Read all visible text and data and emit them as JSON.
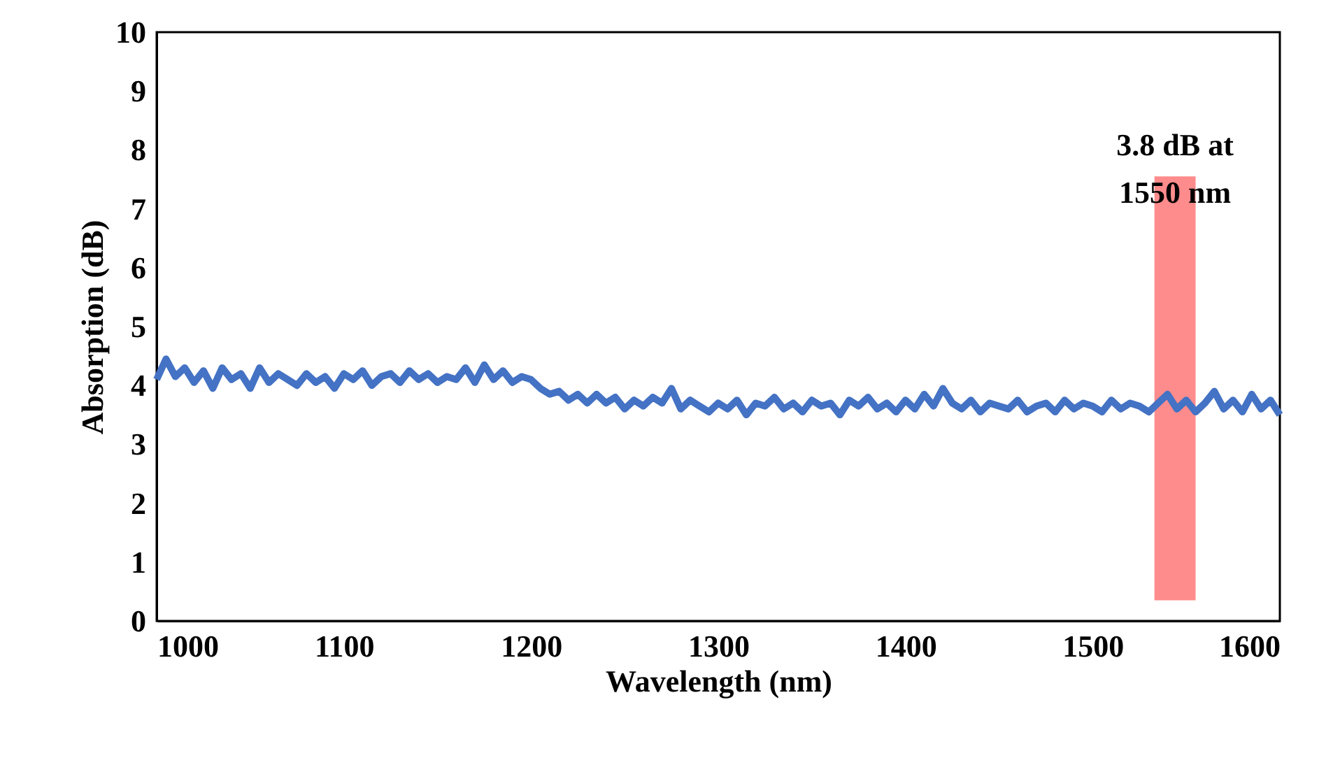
{
  "chart_data": {
    "type": "line",
    "xlabel": "Wavelength (nm)",
    "ylabel": "Absorption  (dB)",
    "x": [
      1000,
      1005,
      1010,
      1015,
      1020,
      1025,
      1030,
      1035,
      1040,
      1045,
      1050,
      1055,
      1060,
      1065,
      1070,
      1075,
      1080,
      1085,
      1090,
      1095,
      1100,
      1105,
      1110,
      1115,
      1120,
      1125,
      1130,
      1135,
      1140,
      1145,
      1150,
      1155,
      1160,
      1165,
      1170,
      1175,
      1180,
      1185,
      1190,
      1195,
      1200,
      1205,
      1210,
      1215,
      1220,
      1225,
      1230,
      1235,
      1240,
      1245,
      1250,
      1255,
      1260,
      1265,
      1270,
      1275,
      1280,
      1285,
      1290,
      1295,
      1300,
      1305,
      1310,
      1315,
      1320,
      1325,
      1330,
      1335,
      1340,
      1345,
      1350,
      1355,
      1360,
      1365,
      1370,
      1375,
      1380,
      1385,
      1390,
      1395,
      1400,
      1405,
      1410,
      1415,
      1420,
      1425,
      1430,
      1435,
      1440,
      1445,
      1450,
      1455,
      1460,
      1465,
      1470,
      1475,
      1480,
      1485,
      1490,
      1495,
      1500,
      1505,
      1510,
      1515,
      1520,
      1525,
      1530,
      1535,
      1540,
      1545,
      1550,
      1555,
      1560,
      1565,
      1570,
      1575,
      1580,
      1585,
      1590,
      1595,
      1600
    ],
    "series": [
      {
        "color": "#4472c4",
        "values": [
          4.1,
          4.45,
          4.15,
          4.3,
          4.05,
          4.25,
          3.95,
          4.3,
          4.1,
          4.2,
          3.95,
          4.3,
          4.05,
          4.2,
          4.1,
          4.0,
          4.2,
          4.05,
          4.15,
          3.95,
          4.2,
          4.1,
          4.25,
          4.0,
          4.15,
          4.2,
          4.05,
          4.25,
          4.1,
          4.2,
          4.05,
          4.15,
          4.1,
          4.3,
          4.05,
          4.35,
          4.1,
          4.25,
          4.05,
          4.15,
          4.1,
          3.95,
          3.85,
          3.9,
          3.75,
          3.85,
          3.7,
          3.85,
          3.7,
          3.8,
          3.6,
          3.75,
          3.65,
          3.8,
          3.7,
          3.95,
          3.6,
          3.75,
          3.65,
          3.55,
          3.7,
          3.6,
          3.75,
          3.5,
          3.7,
          3.65,
          3.8,
          3.6,
          3.7,
          3.55,
          3.75,
          3.65,
          3.7,
          3.5,
          3.75,
          3.65,
          3.8,
          3.6,
          3.7,
          3.55,
          3.75,
          3.6,
          3.85,
          3.65,
          3.95,
          3.7,
          3.6,
          3.75,
          3.55,
          3.7,
          3.65,
          3.6,
          3.75,
          3.55,
          3.65,
          3.7,
          3.55,
          3.75,
          3.6,
          3.7,
          3.65,
          3.55,
          3.75,
          3.6,
          3.7,
          3.65,
          3.55,
          3.7,
          3.85,
          3.6,
          3.75,
          3.55,
          3.7,
          3.9,
          3.6,
          3.75,
          3.55,
          3.85,
          3.6,
          3.75,
          3.5
        ]
      }
    ],
    "xlim": [
      1000,
      1600
    ],
    "xticks": [
      1000,
      1100,
      1200,
      1300,
      1400,
      1500,
      1600
    ],
    "ylim": [
      0,
      10
    ],
    "yticks": [
      0,
      1,
      2,
      3,
      4,
      5,
      6,
      7,
      8,
      9,
      10
    ],
    "bands": [
      {
        "axis": "x",
        "from": 1533,
        "to": 1555,
        "color": "#ff7f7f"
      }
    ],
    "annotations": [
      "3.8 dB at 1550 nm"
    ],
    "grid": false,
    "marker": "none",
    "line_style": "solid"
  }
}
